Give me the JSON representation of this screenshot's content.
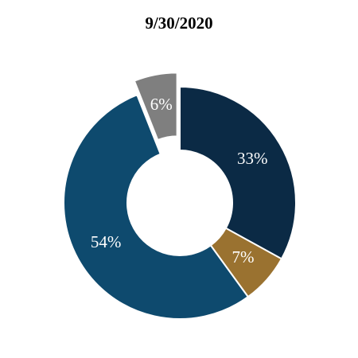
{
  "chart_data": {
    "type": "donut",
    "title": "9/30/2020",
    "values": [
      33,
      7,
      54,
      6
    ],
    "value_labels": [
      "33%",
      "7%",
      "54%",
      "6%"
    ],
    "colors": [
      "#0b2a45",
      "#9a7230",
      "#0e4a6e",
      "#7f7f7f"
    ],
    "explode": [
      false,
      false,
      false,
      true
    ]
  }
}
